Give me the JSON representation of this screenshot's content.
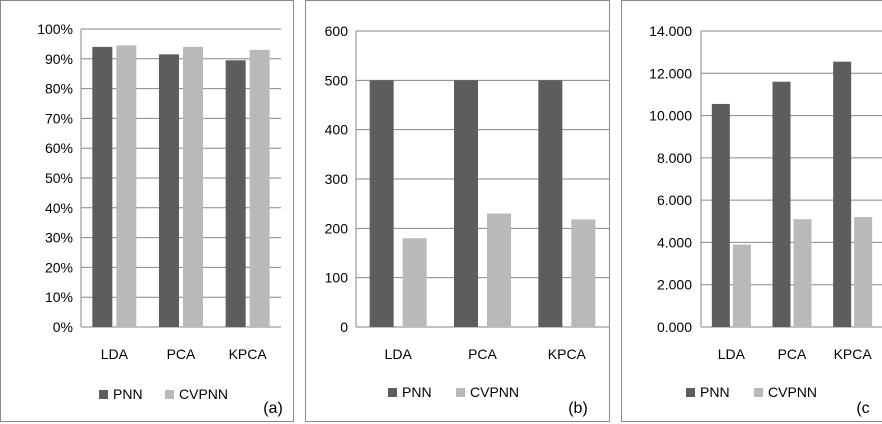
{
  "colors": {
    "pnn": "#5d5d5d",
    "cvpnn": "#b9b9b9",
    "axis": "#868686",
    "grid": "#868686"
  },
  "chart_data": [
    {
      "type": "bar",
      "panel_label": "(a)",
      "categories": [
        "LDA",
        "PCA",
        "KPCA"
      ],
      "series": [
        {
          "name": "PNN",
          "values": [
            94,
            91.5,
            89.5
          ]
        },
        {
          "name": "CVPNN",
          "values": [
            94.5,
            94,
            93
          ]
        }
      ],
      "ylim": [
        0,
        100
      ],
      "yticks": [
        "0%",
        "10%",
        "20%",
        "30%",
        "40%",
        "50%",
        "60%",
        "70%",
        "80%",
        "90%",
        "100%"
      ],
      "grid": true,
      "legend": "bottom"
    },
    {
      "type": "bar",
      "panel_label": "(b)",
      "categories": [
        "LDA",
        "PCA",
        "KPCA"
      ],
      "series": [
        {
          "name": "PNN",
          "values": [
            500,
            500,
            500
          ]
        },
        {
          "name": "CVPNN",
          "values": [
            180,
            230,
            218
          ]
        }
      ],
      "ylim": [
        0,
        600
      ],
      "yticks": [
        "0",
        "100",
        "200",
        "300",
        "400",
        "500",
        "600"
      ],
      "grid": true,
      "legend": "bottom"
    },
    {
      "type": "bar",
      "panel_label": "(c",
      "categories": [
        "LDA",
        "PCA",
        "KPCA"
      ],
      "series": [
        {
          "name": "PNN",
          "values": [
            10.55,
            11.6,
            12.55
          ]
        },
        {
          "name": "CVPNN",
          "values": [
            3.9,
            5.1,
            5.2
          ]
        }
      ],
      "ylim": [
        0,
        14
      ],
      "yticks": [
        "0.000",
        "2.000",
        "4.000",
        "6.000",
        "8.000",
        "10.000",
        "12.000",
        "14.000"
      ],
      "grid": true,
      "legend": "bottom"
    }
  ]
}
